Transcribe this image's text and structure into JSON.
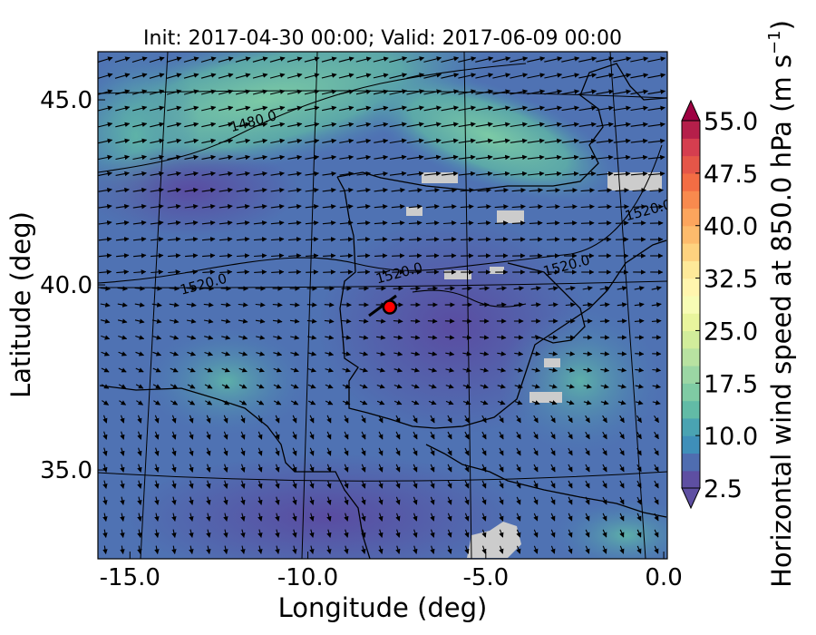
{
  "chart_data": {
    "type": "heatmap",
    "title": "Init: 2017-04-30 00:00; Valid: 2017-06-09 00:00",
    "xlabel": "Longitude (deg)",
    "ylabel": "Latitude (deg)",
    "xlim": [
      -15.9,
      0.1
    ],
    "ylim": [
      32.6,
      46.3
    ],
    "x_ticks": [
      {
        "value": -15,
        "label": "-15.0"
      },
      {
        "value": -10,
        "label": "-10.0"
      },
      {
        "value": -5,
        "label": "-5.0"
      },
      {
        "value": 0,
        "label": "0.0"
      }
    ],
    "y_ticks": [
      {
        "value": 35,
        "label": "35.0"
      },
      {
        "value": 40,
        "label": "40.0"
      },
      {
        "value": 45,
        "label": "45.0"
      }
    ],
    "colorbar": {
      "label": "Horizontal wind speed at 850.0 hPa (m s",
      "label_sup": "−1",
      "label_end": ")",
      "min": 2.5,
      "max": 55.0,
      "step": 2.5,
      "ticks": [
        "2.5",
        "10.0",
        "17.5",
        "25.0",
        "32.5",
        "40.0",
        "47.5",
        "55.0"
      ],
      "extend": "both",
      "colormap": "Spectral_r"
    },
    "contours": [
      {
        "label": "1480.0",
        "lon": -11.5,
        "lat": 44.3
      },
      {
        "label": "1520.0",
        "lon": -12.9,
        "lat": 39.9
      },
      {
        "label": "1520.0",
        "lon": -7.4,
        "lat": 40.2
      },
      {
        "label": "1520.0",
        "lon": -2.7,
        "lat": 40.4
      },
      {
        "label": "1520.0",
        "lon": -0.4,
        "lat": 41.9
      }
    ],
    "marker": {
      "lon": -7.7,
      "lat": 39.4,
      "color": "#ff0000"
    },
    "colors": {
      "ocean_field": "#4d6fb0",
      "land_field": "#5f4ea3",
      "gridline": "#000000"
    }
  }
}
